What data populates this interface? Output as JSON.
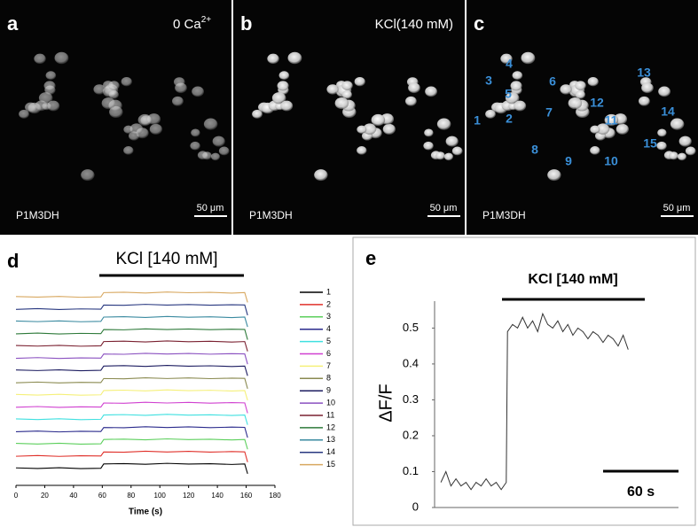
{
  "panels": [
    {
      "letter": "a",
      "condition": {
        "text": "0 Ca",
        "sup": "2+"
      },
      "sample": "P1M3DH",
      "scale": "50 μm"
    },
    {
      "letter": "b",
      "condition": "KCl(140 mM)",
      "sample": "P1M3DH",
      "scale": "50 μm"
    },
    {
      "letter": "c",
      "cells": [
        "1",
        "2",
        "3",
        "4",
        "5",
        "6",
        "7",
        "8",
        "9",
        "10",
        "11",
        "12",
        "13",
        "14",
        "15"
      ],
      "sample": "P1M3DH",
      "scale": "50 μm"
    }
  ],
  "chart_data": [
    {
      "type": "line",
      "panel_label": "d",
      "annotation": "KCl [140 mM]",
      "xlabel": "Time (s)",
      "x": [
        0,
        15,
        30,
        45,
        59,
        61,
        75,
        90,
        105,
        120,
        135,
        150,
        159,
        161
      ],
      "xlim": [
        0,
        180
      ],
      "xticks": [
        0,
        20,
        40,
        60,
        80,
        100,
        120,
        140,
        160,
        180
      ],
      "ylim": [
        0,
        16.5
      ],
      "series": [
        {
          "name": "1",
          "color": "#000000",
          "values": [
            1.43,
            1.38,
            1.44,
            1.37,
            1.4,
            1.75,
            1.78,
            1.72,
            1.8,
            1.74,
            1.77,
            1.71,
            1.75,
            0.95
          ]
        },
        {
          "name": "2",
          "color": "#e0302a",
          "values": [
            2.38,
            2.44,
            2.37,
            2.42,
            2.4,
            2.73,
            2.71,
            2.79,
            2.73,
            2.78,
            2.72,
            2.76,
            2.74,
            1.9
          ]
        },
        {
          "name": "3",
          "color": "#5ccf5c",
          "values": [
            3.43,
            3.38,
            3.44,
            3.37,
            3.4,
            3.75,
            3.78,
            3.72,
            3.8,
            3.74,
            3.77,
            3.71,
            3.75,
            2.95
          ]
        },
        {
          "name": "4",
          "color": "#2a2a8c",
          "values": [
            4.38,
            4.44,
            4.37,
            4.42,
            4.4,
            4.73,
            4.71,
            4.79,
            4.73,
            4.78,
            4.72,
            4.76,
            4.74,
            3.9
          ]
        },
        {
          "name": "5",
          "color": "#3fe0e0",
          "values": [
            5.43,
            5.38,
            5.44,
            5.37,
            5.4,
            5.75,
            5.78,
            5.72,
            5.8,
            5.74,
            5.77,
            5.71,
            5.75,
            4.95
          ]
        },
        {
          "name": "6",
          "color": "#d040d0",
          "values": [
            6.38,
            6.44,
            6.37,
            6.42,
            6.4,
            6.73,
            6.71,
            6.79,
            6.73,
            6.78,
            6.72,
            6.76,
            6.74,
            5.9
          ]
        },
        {
          "name": "7",
          "color": "#f5f07a",
          "values": [
            7.43,
            7.38,
            7.44,
            7.37,
            7.4,
            7.75,
            7.78,
            7.72,
            7.8,
            7.74,
            7.77,
            7.71,
            7.75,
            6.95
          ]
        },
        {
          "name": "8",
          "color": "#8a8a50",
          "values": [
            8.38,
            8.44,
            8.37,
            8.42,
            8.4,
            8.73,
            8.71,
            8.79,
            8.73,
            8.78,
            8.72,
            8.76,
            8.74,
            7.9
          ]
        },
        {
          "name": "9",
          "color": "#1c1c60",
          "values": [
            9.43,
            9.38,
            9.44,
            9.37,
            9.4,
            9.75,
            9.78,
            9.72,
            9.8,
            9.74,
            9.77,
            9.71,
            9.75,
            8.95
          ]
        },
        {
          "name": "10",
          "color": "#8a50c0",
          "values": [
            10.38,
            10.44,
            10.37,
            10.42,
            10.4,
            10.73,
            10.71,
            10.79,
            10.73,
            10.78,
            10.72,
            10.76,
            10.74,
            9.9
          ]
        },
        {
          "name": "11",
          "color": "#7a2030",
          "values": [
            11.43,
            11.38,
            11.44,
            11.37,
            11.4,
            11.75,
            11.78,
            11.72,
            11.8,
            11.74,
            11.77,
            11.71,
            11.75,
            10.95
          ]
        },
        {
          "name": "12",
          "color": "#2e7a3a",
          "values": [
            12.38,
            12.44,
            12.37,
            12.42,
            12.4,
            12.73,
            12.71,
            12.79,
            12.73,
            12.78,
            12.72,
            12.76,
            12.74,
            11.9
          ]
        },
        {
          "name": "13",
          "color": "#3a8aa0",
          "values": [
            13.43,
            13.38,
            13.44,
            13.37,
            13.4,
            13.75,
            13.78,
            13.72,
            13.8,
            13.74,
            13.77,
            13.71,
            13.75,
            12.95
          ]
        },
        {
          "name": "14",
          "color": "#283880",
          "values": [
            14.38,
            14.44,
            14.37,
            14.42,
            14.4,
            14.73,
            14.71,
            14.79,
            14.73,
            14.78,
            14.72,
            14.76,
            14.74,
            13.9
          ]
        },
        {
          "name": "15",
          "color": "#d8a860",
          "values": [
            15.43,
            15.38,
            15.44,
            15.37,
            15.4,
            15.75,
            15.78,
            15.72,
            15.8,
            15.74,
            15.77,
            15.71,
            15.75,
            14.95
          ]
        }
      ]
    },
    {
      "type": "line",
      "panel_label": "e",
      "annotation": "KCl [140 mM]",
      "ylabel": "ΔF/F",
      "color": "#333333",
      "x": [
        0,
        4,
        8,
        12,
        16,
        20,
        24,
        28,
        32,
        36,
        40,
        44,
        48,
        52,
        53,
        57,
        61,
        65,
        69,
        73,
        77,
        81,
        85,
        89,
        93,
        97,
        101,
        105,
        109,
        113,
        117,
        121,
        125,
        129,
        133,
        137,
        141,
        145,
        149
      ],
      "values": [
        0.07,
        0.1,
        0.06,
        0.08,
        0.06,
        0.07,
        0.05,
        0.07,
        0.06,
        0.08,
        0.06,
        0.07,
        0.05,
        0.07,
        0.49,
        0.51,
        0.5,
        0.53,
        0.5,
        0.52,
        0.49,
        0.54,
        0.51,
        0.5,
        0.52,
        0.49,
        0.51,
        0.48,
        0.5,
        0.49,
        0.47,
        0.49,
        0.48,
        0.46,
        0.48,
        0.47,
        0.45,
        0.48,
        0.44
      ],
      "xlim": [
        -5,
        189
      ],
      "ylim": [
        0,
        0.575
      ],
      "yticks": [
        0,
        0.1,
        0.2,
        0.3,
        0.4,
        0.5
      ],
      "scale_bar": {
        "value": 60,
        "label": "60 s"
      }
    }
  ]
}
